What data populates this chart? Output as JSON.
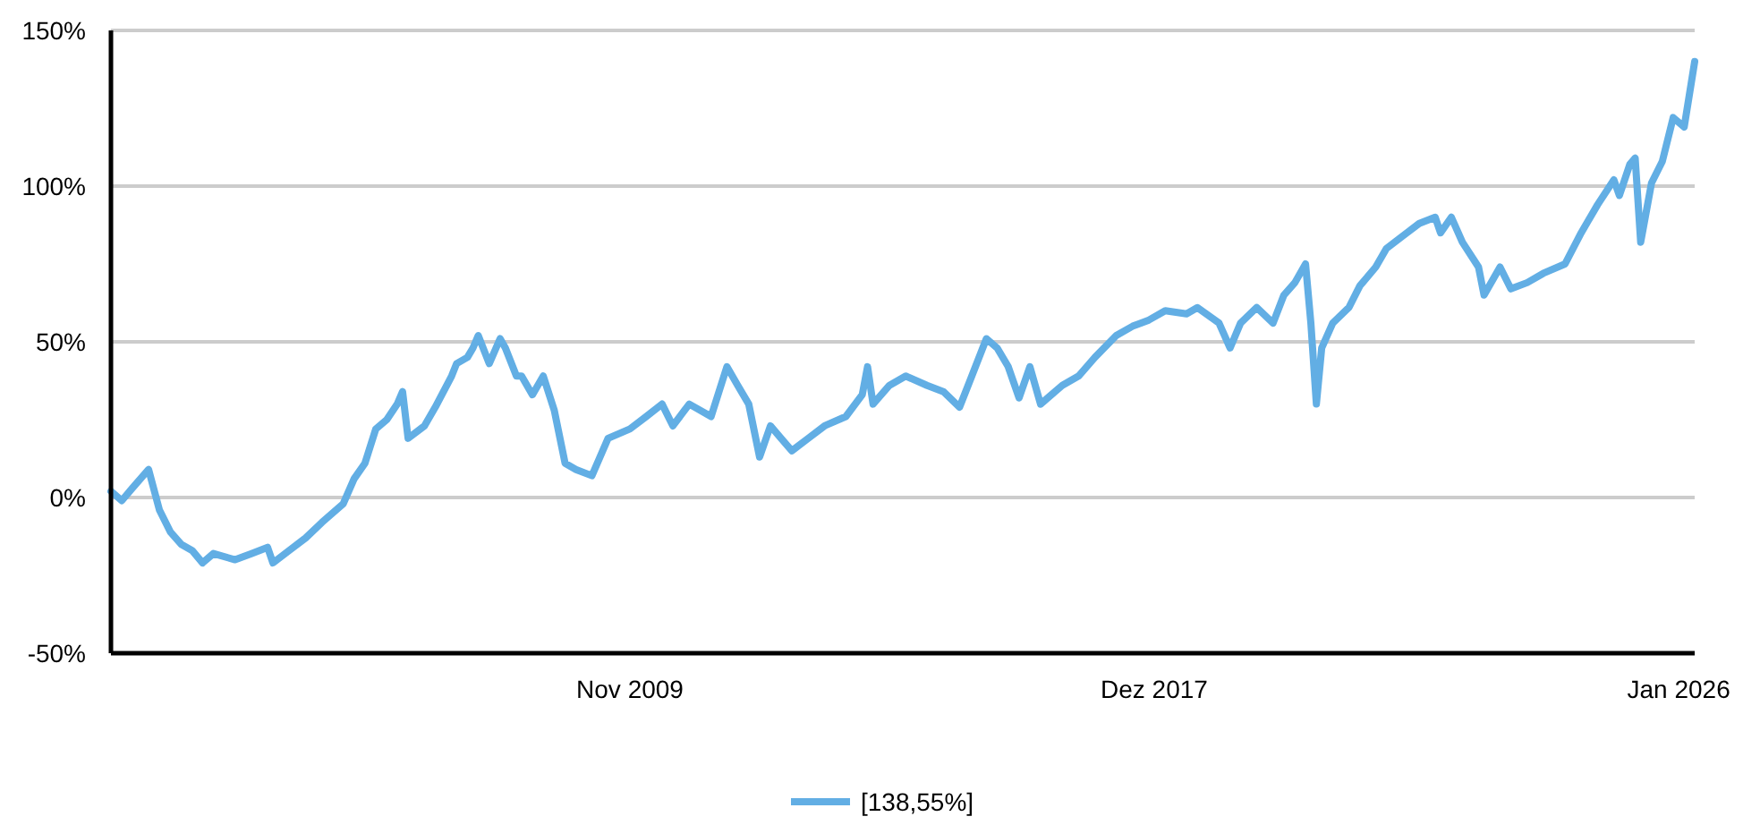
{
  "chart_data": {
    "type": "line",
    "xlim": [
      "2001-11",
      "2026-04"
    ],
    "xticks": [
      {
        "value": "2009-11",
        "label": "Nov 2009"
      },
      {
        "value": "2017-12",
        "label": "Dez 2017"
      },
      {
        "value": "2026-01",
        "label": "Jan 2026"
      }
    ],
    "ylim": [
      -50,
      150
    ],
    "yticks": [
      {
        "value": -50,
        "label": "-50%"
      },
      {
        "value": 0,
        "label": "0%"
      },
      {
        "value": 50,
        "label": "50%"
      },
      {
        "value": 100,
        "label": "100%"
      },
      {
        "value": 150,
        "label": "150%"
      }
    ],
    "grid": "y",
    "legend": "bottom",
    "marker": "none",
    "line_style": "solid",
    "x": [
      "2001-11",
      "2002-01",
      "2002-03",
      "2002-06",
      "2002-08",
      "2002-10",
      "2002-12",
      "2003-02",
      "2003-04",
      "2003-06",
      "2003-10",
      "2004-01",
      "2004-04",
      "2004-05",
      "2004-08",
      "2004-11",
      "2005-02",
      "2005-06",
      "2005-08",
      "2005-10",
      "2005-12",
      "2006-02",
      "2006-04",
      "2006-05",
      "2006-06",
      "2006-09",
      "2006-11",
      "2007-02",
      "2007-03",
      "2007-05",
      "2007-06",
      "2007-07",
      "2007-09",
      "2007-11",
      "2007-12",
      "2008-02",
      "2008-03",
      "2008-05",
      "2008-07",
      "2008-09",
      "2008-11",
      "2009-01",
      "2009-04",
      "2009-07",
      "2009-11",
      "2010-02",
      "2010-05",
      "2010-07",
      "2010-10",
      "2011-02",
      "2011-05",
      "2011-07",
      "2011-09",
      "2011-11",
      "2012-01",
      "2012-03",
      "2012-05",
      "2012-08",
      "2012-11",
      "2013-03",
      "2013-06",
      "2013-07",
      "2013-08",
      "2013-11",
      "2014-02",
      "2014-06",
      "2014-09",
      "2014-12",
      "2015-02",
      "2015-05",
      "2015-07",
      "2015-09",
      "2015-11",
      "2016-01",
      "2016-03",
      "2016-07",
      "2016-10",
      "2017-01",
      "2017-05",
      "2017-08",
      "2017-11",
      "2018-02",
      "2018-06",
      "2018-08",
      "2018-12",
      "2019-02",
      "2019-04",
      "2019-07",
      "2019-10",
      "2019-12",
      "2020-02",
      "2020-04",
      "2020-05",
      "2020-06",
      "2020-07",
      "2020-09",
      "2020-12",
      "2021-02",
      "2021-05",
      "2021-07",
      "2021-10",
      "2022-01",
      "2022-04",
      "2022-05",
      "2022-07",
      "2022-09",
      "2022-12",
      "2023-01",
      "2023-04",
      "2023-06",
      "2023-09",
      "2023-12",
      "2024-04",
      "2024-07",
      "2024-10",
      "2025-01",
      "2025-02",
      "2025-04",
      "2025-05",
      "2025-06",
      "2025-08",
      "2025-10",
      "2025-12",
      "2026-02",
      "2026-04"
    ],
    "series": [
      {
        "name": "[138,55%]",
        "color": "#62aee4",
        "values": [
          2,
          -1,
          3,
          9,
          -4,
          -11,
          -15,
          -17,
          -21,
          -18,
          -20,
          -18,
          -16,
          -21,
          -17,
          -13,
          -8,
          -2,
          6,
          11,
          22,
          25,
          30,
          34,
          19,
          23,
          29,
          39,
          43,
          45,
          48,
          52,
          43,
          51,
          48,
          39,
          39,
          33,
          39,
          28,
          11,
          9,
          7,
          19,
          22,
          26,
          30,
          23,
          30,
          26,
          42,
          36,
          30,
          13,
          23,
          19,
          15,
          19,
          23,
          26,
          33,
          42,
          30,
          36,
          39,
          36,
          34,
          29,
          38,
          51,
          48,
          42,
          32,
          42,
          30,
          36,
          39,
          45,
          52,
          55,
          57,
          60,
          59,
          61,
          56,
          48,
          56,
          61,
          56,
          65,
          69,
          75,
          56,
          30,
          48,
          56,
          61,
          68,
          74,
          80,
          84,
          88,
          90,
          85,
          90,
          82,
          74,
          65,
          74,
          67,
          69,
          72,
          75,
          85,
          94,
          102,
          97,
          107,
          109,
          82,
          101,
          108,
          122,
          119,
          140
        ]
      }
    ]
  }
}
